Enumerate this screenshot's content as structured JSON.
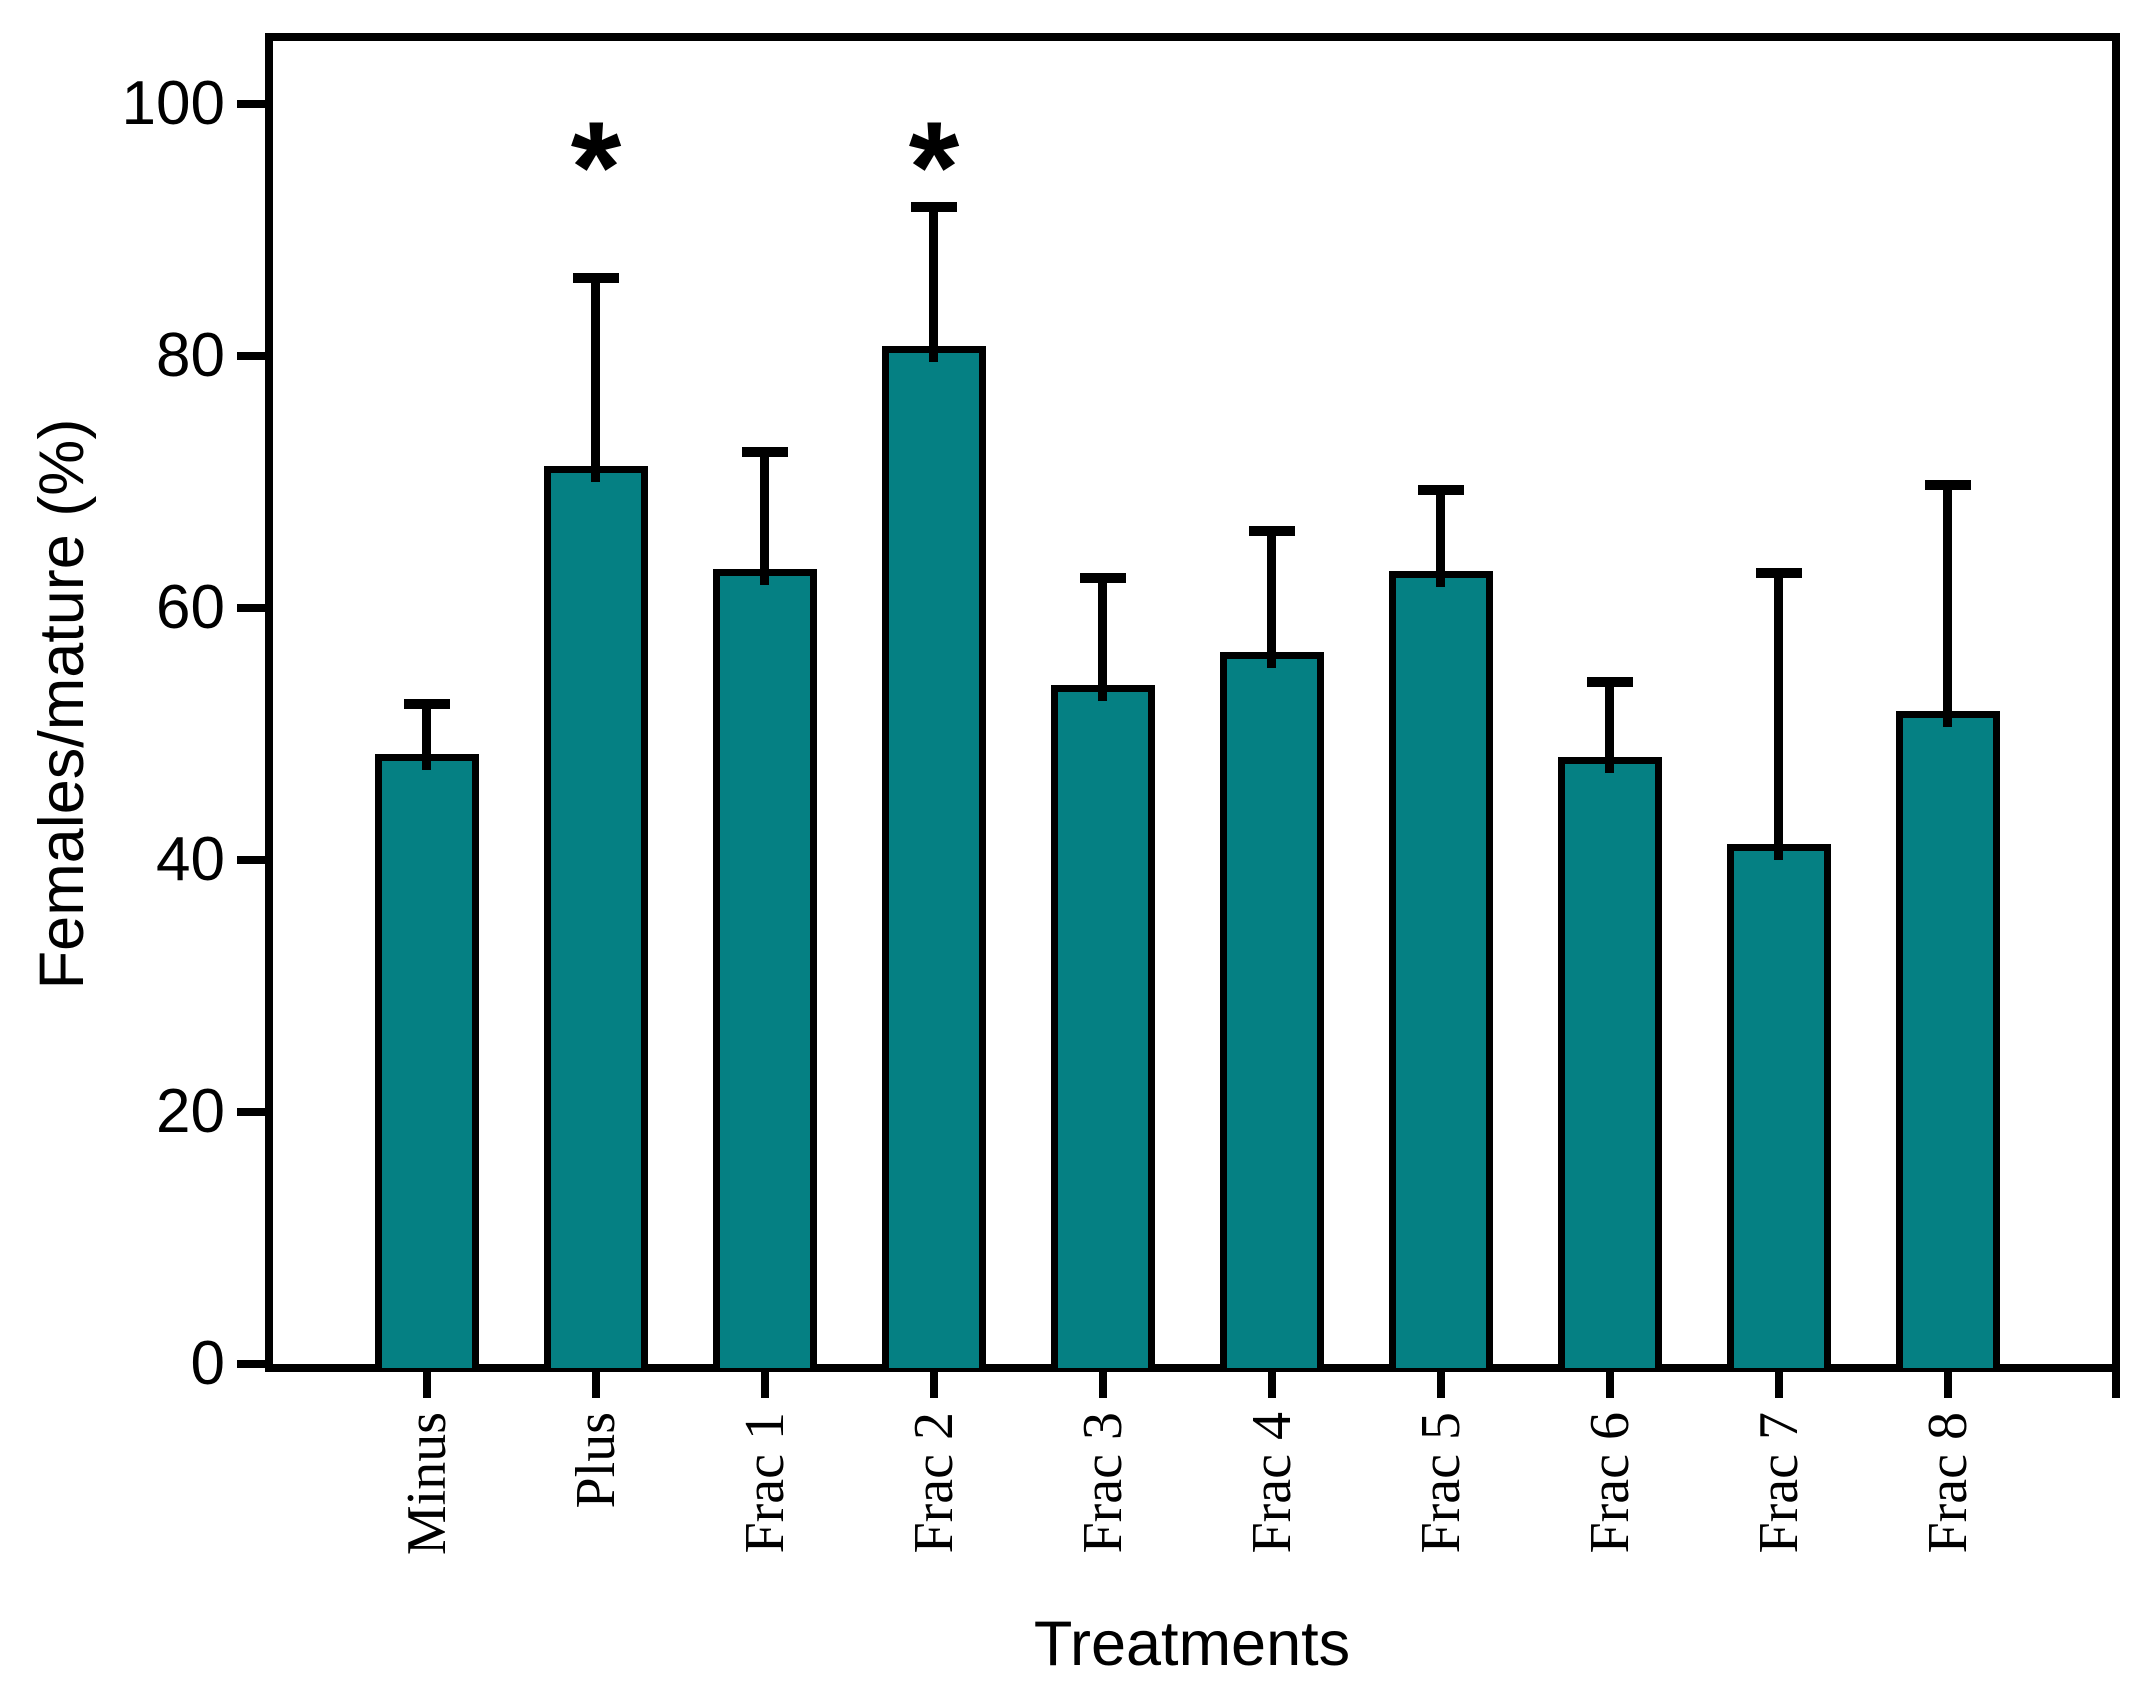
{
  "chart_data": {
    "type": "bar",
    "title": "",
    "xlabel": "Treatments",
    "ylabel": "Females/mature (%)",
    "categories": [
      "Minus",
      "Plus",
      "Frac 1",
      "Frac 2",
      "Frac 3",
      "Frac 4",
      "Frac 5",
      "Frac 6",
      "Frac 7",
      "Frac 8"
    ],
    "values": [
      48.4,
      71.3,
      63.1,
      80.8,
      53.9,
      56.5,
      62.9,
      48.2,
      41.3,
      51.8
    ],
    "error_upper": [
      4.0,
      14.9,
      9.3,
      11.0,
      8.5,
      9.6,
      6.5,
      5.9,
      21.5,
      18.0
    ],
    "significance": [
      false,
      true,
      false,
      true,
      false,
      false,
      false,
      false,
      false,
      false
    ],
    "significance_symbol": "*",
    "yticks": [
      0,
      20,
      40,
      60,
      80,
      100
    ],
    "ylim": [
      0,
      105
    ],
    "grid": false,
    "legend": "none",
    "bar_color": "#058083",
    "bar_border_color": "#000000",
    "axis_color": "#000000",
    "background_color": "#ffffff"
  }
}
